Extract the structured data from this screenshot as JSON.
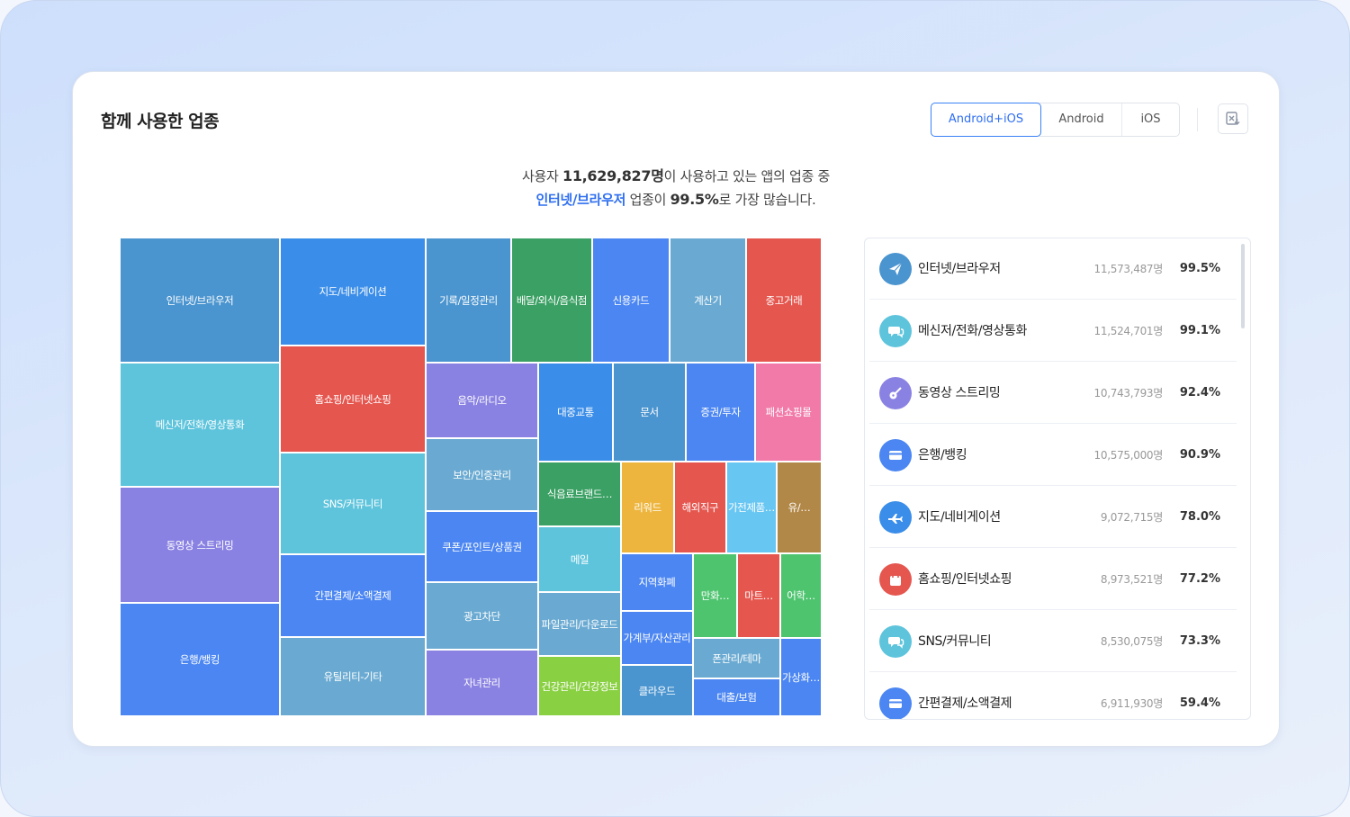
{
  "title": "함께 사용한 업종",
  "platform_tabs": [
    {
      "label": "Android+iOS",
      "active": true
    },
    {
      "label": "Android",
      "active": false
    },
    {
      "label": "iOS",
      "active": false
    }
  ],
  "export_icon": "excel-download-icon",
  "summary": {
    "prefix": "사용자 ",
    "total_users": "11,629,827명",
    "mid": "이 사용하고 있는 앱의 업종 중",
    "top_category": "인터넷/브라우저",
    "mid2": " 업종이 ",
    "top_pct": "99.5%",
    "suffix": "로 가장 많습니다."
  },
  "chart_data": {
    "type": "treemap",
    "cells": [
      {
        "label": "인터넷/브라우저",
        "color": "#4a94cf"
      },
      {
        "label": "메신저/전화/영상통화",
        "color": "#5ec4dc"
      },
      {
        "label": "동영상 스트리밍",
        "color": "#8a82e2"
      },
      {
        "label": "은행/뱅킹",
        "color": "#4b86f2"
      },
      {
        "label": "지도/네비게이션",
        "color": "#3a8de8"
      },
      {
        "label": "홈쇼핑/인터넷쇼핑",
        "color": "#e5564f"
      },
      {
        "label": "SNS/커뮤니티",
        "color": "#5ec4dc"
      },
      {
        "label": "간편결제/소액결제",
        "color": "#4b86f2"
      },
      {
        "label": "유틸리티-기타",
        "color": "#6aaad2"
      },
      {
        "label": "기록/일정관리",
        "color": "#4a94cf"
      },
      {
        "label": "배달/외식/음식점",
        "color": "#3aa063"
      },
      {
        "label": "신용카드",
        "color": "#4b86f2"
      },
      {
        "label": "계산기",
        "color": "#6aaad2"
      },
      {
        "label": "중고거래",
        "color": "#e5564f"
      },
      {
        "label": "음악/라디오",
        "color": "#8a82e2"
      },
      {
        "label": "보안/인증관리",
        "color": "#6aaad2"
      },
      {
        "label": "쿠폰/포인트/상품권",
        "color": "#4b86f2"
      },
      {
        "label": "광고차단",
        "color": "#6aaad2"
      },
      {
        "label": "자녀관리",
        "color": "#8a82e2"
      },
      {
        "label": "대중교통",
        "color": "#3a8de8"
      },
      {
        "label": "문서",
        "color": "#4a94cf"
      },
      {
        "label": "증권/투자",
        "color": "#4b86f2"
      },
      {
        "label": "패션쇼핑몰",
        "color": "#f27aa8"
      },
      {
        "label": "식음료브랜드…",
        "color": "#3aa063"
      },
      {
        "label": "리워드",
        "color": "#edb53d"
      },
      {
        "label": "해외직구",
        "color": "#e5564f"
      },
      {
        "label": "가전제품…",
        "color": "#68c6f2"
      },
      {
        "label": "유/…",
        "color": "#b28848"
      },
      {
        "label": "메일",
        "color": "#5ec4dc"
      },
      {
        "label": "파일관리/다운로드",
        "color": "#6aaad2"
      },
      {
        "label": "건강관리/건강정보",
        "color": "#8ad043"
      },
      {
        "label": "지역화폐",
        "color": "#4b86f2"
      },
      {
        "label": "가계부/자산관리",
        "color": "#4b86f2"
      },
      {
        "label": "클라우드",
        "color": "#4a94cf"
      },
      {
        "label": "만화…",
        "color": "#4ec46f"
      },
      {
        "label": "마트…",
        "color": "#e5564f"
      },
      {
        "label": "어학…",
        "color": "#4ec46f"
      },
      {
        "label": "폰관리/테마",
        "color": "#6aaad2"
      },
      {
        "label": "대출/보험",
        "color": "#4b86f2"
      },
      {
        "label": "가상화…",
        "color": "#4b86f2"
      }
    ]
  },
  "ranking": [
    {
      "name": "인터넷/브라우저",
      "users": "11,573,487명",
      "pct": "99.5%",
      "icon": "paper-plane-icon",
      "color": "#4a94cf"
    },
    {
      "name": "메신저/전화/영상통화",
      "users": "11,524,701명",
      "pct": "99.1%",
      "icon": "chat-bubbles-icon",
      "color": "#5ec4dc"
    },
    {
      "name": "동영상 스트리밍",
      "users": "10,743,793명",
      "pct": "92.4%",
      "icon": "guitar-icon",
      "color": "#8a82e2"
    },
    {
      "name": "은행/뱅킹",
      "users": "10,575,000명",
      "pct": "90.9%",
      "icon": "credit-card-icon",
      "color": "#4b86f2"
    },
    {
      "name": "지도/네비게이션",
      "users": "9,072,715명",
      "pct": "78.0%",
      "icon": "airplane-icon",
      "color": "#3a8de8"
    },
    {
      "name": "홈쇼핑/인터넷쇼핑",
      "users": "8,973,521명",
      "pct": "77.2%",
      "icon": "shopping-bag-icon",
      "color": "#e5564f"
    },
    {
      "name": "SNS/커뮤니티",
      "users": "8,530,075명",
      "pct": "73.3%",
      "icon": "chat-bubbles-icon",
      "color": "#5ec4dc"
    },
    {
      "name": "간편결제/소액결제",
      "users": "6,911,930명",
      "pct": "59.4%",
      "icon": "credit-card-icon",
      "color": "#4b86f2"
    }
  ]
}
